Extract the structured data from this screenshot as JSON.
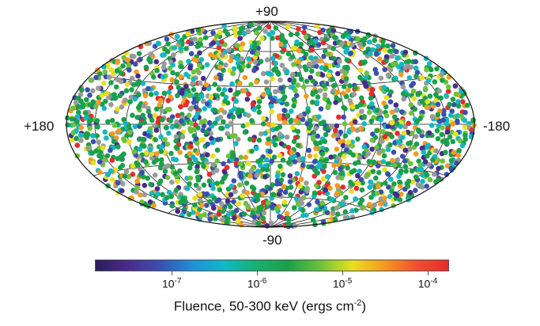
{
  "chart_data": {
    "type": "scatter",
    "projection": "aitoff-hammer",
    "coordinate_labels": {
      "top": "+90",
      "bottom": "-90",
      "left": "+180",
      "right": "-180"
    },
    "longitude_range": [
      180,
      -180
    ],
    "latitude_range": [
      -90,
      90
    ],
    "graticule": {
      "longitude_step": 30,
      "latitude_step": 30
    },
    "point_count_approx": 2400,
    "colorbar": {
      "label_prefix": "Fluence, 50-300 keV (ergs cm",
      "label_exponent": "-2",
      "label_suffix": ")",
      "scale": "log",
      "range_log10": [
        -7.9,
        -3.75
      ],
      "ticks": [
        {
          "base": "10",
          "exponent": "-7",
          "log10": -7
        },
        {
          "base": "10",
          "exponent": "-6",
          "log10": -6
        },
        {
          "base": "10",
          "exponent": "-5",
          "log10": -5
        },
        {
          "base": "10",
          "exponent": "-4",
          "log10": -4
        }
      ],
      "colormap": [
        "#2a1f5a",
        "#4b2a8a",
        "#3a4fb0",
        "#1f8fd8",
        "#10b8c8",
        "#18b070",
        "#1aa04a",
        "#6cc23a",
        "#e8e020",
        "#f59a20",
        "#f05030",
        "#e82a2a"
      ]
    },
    "point_color_groups": [
      {
        "name_color": "#1aa04a",
        "weight": 0.3
      },
      {
        "name_color": "#12b8c4",
        "weight": 0.13
      },
      {
        "name_color": "#3a4fb0",
        "weight": 0.12
      },
      {
        "name_color": "#4b2a8a",
        "weight": 0.06
      },
      {
        "name_color": "#9a9a9a",
        "weight": 0.12
      },
      {
        "name_color": "#e8e020",
        "weight": 0.07
      },
      {
        "name_color": "#f59a20",
        "weight": 0.07
      },
      {
        "name_color": "#e82a2a",
        "weight": 0.05
      },
      {
        "name_color": "#6cc23a",
        "weight": 0.08
      }
    ]
  }
}
